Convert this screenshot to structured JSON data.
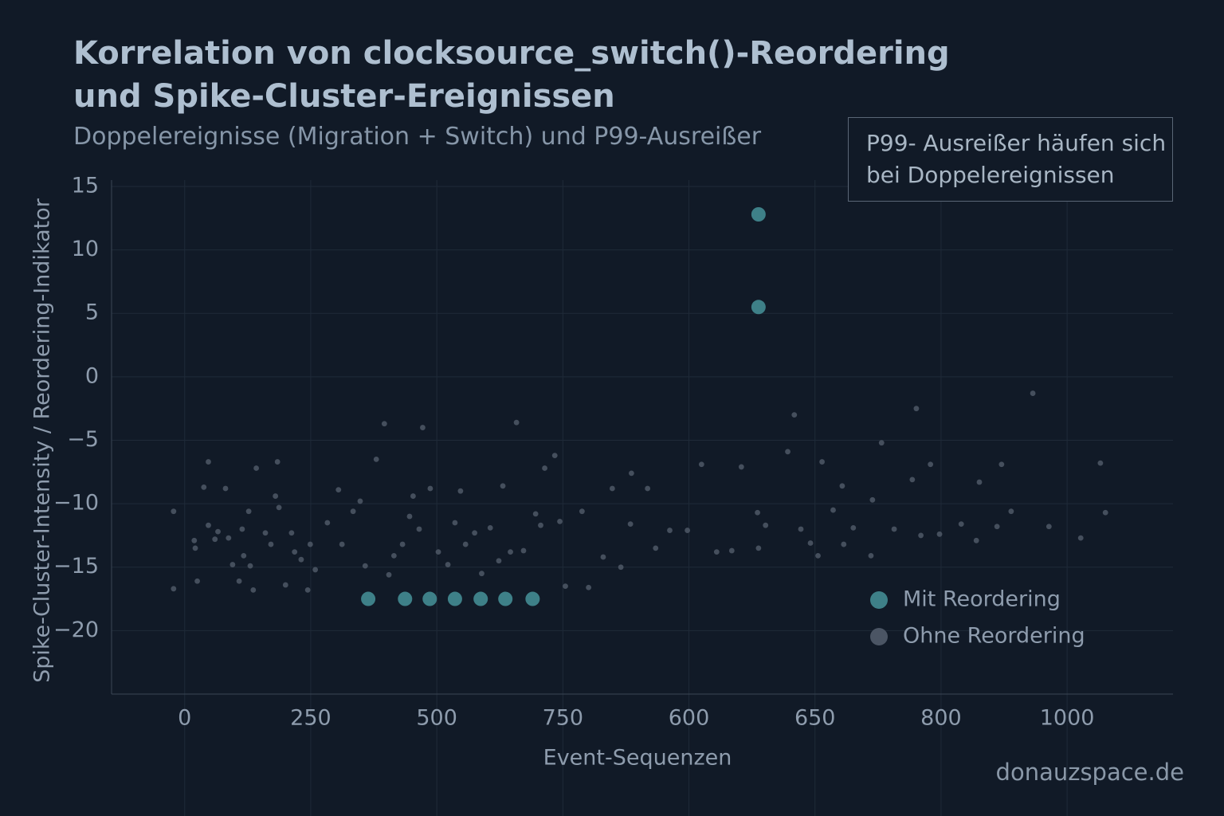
{
  "chart_data": {
    "type": "scatter",
    "title": "Korrelation von clocksource_switch()-Reordering und Spike-Cluster-Ereignissen",
    "subtitle": "Doppelereignisse (Migration + Switch) und P99-Ausreißer",
    "x_label": "Event-Sequenzen",
    "y_label": "Spike-Cluster-Intensity / Reordering-Indikator",
    "annotation": "P99- Ausreißer häufen sich bei Doppelereignissen",
    "watermark": "donauzspace.de",
    "xlim": [
      -145,
      1960
    ],
    "ylim": [
      -25,
      15.5
    ],
    "xticks": [
      0,
      250,
      500,
      750,
      {
        "value": 1000,
        "label": "600"
      },
      {
        "value": 1250,
        "label": "650"
      },
      {
        "value": 1500,
        "label": "800"
      },
      {
        "value": 1750,
        "label": "1000"
      }
    ],
    "yticks": [
      15,
      10,
      5,
      0,
      {
        "value": -5,
        "label": "−5"
      },
      {
        "value": -10,
        "label": "−10"
      },
      {
        "value": -15,
        "label": "−15"
      },
      {
        "value": -20,
        "label": "−20"
      }
    ],
    "grid": true,
    "legend": "lower right",
    "series": [
      {
        "name": "Mit Reordering",
        "color": "#3e8088",
        "x": [
          1138,
          1138,
          364,
          437,
          486,
          536,
          587,
          636,
          690
        ],
        "values": [
          12.8,
          5.5,
          -17.5,
          -17.5,
          -17.5,
          -17.5,
          -17.5,
          -17.5,
          -17.5
        ]
      },
      {
        "name": "Ohne Reordering",
        "color": "#4b5564",
        "x": [
          -22,
          -22,
          19,
          21,
          25,
          38,
          47,
          47,
          60,
          66,
          81,
          87,
          95,
          108,
          114,
          117,
          127,
          130,
          136,
          142,
          160,
          171,
          180,
          184,
          187,
          200,
          212,
          218,
          231,
          244,
          249,
          259,
          283,
          305,
          312,
          334,
          348,
          358,
          380,
          396,
          405,
          415,
          432,
          446,
          453,
          465,
          472,
          487,
          503,
          522,
          536,
          547,
          557,
          575,
          589,
          606,
          623,
          631,
          646,
          658,
          672,
          696,
          706,
          714,
          734,
          744,
          755,
          788,
          801,
          830,
          848,
          865,
          886,
          884,
          918,
          934,
          962,
          997,
          1025,
          1055,
          1085,
          1104,
          1136,
          1138,
          1152,
          1196,
          1209,
          1222,
          1241,
          1256,
          1264,
          1286,
          1304,
          1307,
          1326,
          1364,
          1361,
          1382,
          1407,
          1443,
          1451,
          1460,
          1479,
          1497,
          1540,
          1570,
          1576,
          1611,
          1620,
          1639,
          1682,
          1714,
          1777,
          1816,
          1826
        ],
        "values": [
          -10.6,
          -16.7,
          -12.9,
          -13.5,
          -16.1,
          -8.7,
          -6.7,
          -11.7,
          -12.8,
          -12.2,
          -8.8,
          -12.7,
          -14.8,
          -16.1,
          -12,
          -14.1,
          -10.6,
          -14.9,
          -16.8,
          -7.2,
          -12.3,
          -13.2,
          -9.4,
          -6.7,
          -10.3,
          -16.4,
          -12.3,
          -13.8,
          -14.4,
          -16.8,
          -13.2,
          -15.2,
          -11.5,
          -8.9,
          -13.2,
          -10.6,
          -9.8,
          -14.9,
          -6.5,
          -3.7,
          -15.6,
          -14.1,
          -13.2,
          -11,
          -9.4,
          -12,
          -4,
          -8.8,
          -13.8,
          -14.8,
          -11.5,
          -9,
          -13.2,
          -12.3,
          -15.5,
          -11.9,
          -14.5,
          -8.6,
          -13.8,
          -3.6,
          -13.7,
          -10.8,
          -11.7,
          -7.2,
          -6.2,
          -11.4,
          -16.5,
          -10.6,
          -16.6,
          -14.2,
          -8.8,
          -15,
          -7.6,
          -11.6,
          -8.8,
          -13.5,
          -12.1,
          -12.1,
          -6.9,
          -13.8,
          -13.7,
          -7.1,
          -10.7,
          -13.5,
          -11.7,
          -5.9,
          -3,
          -12,
          -13.1,
          -14.1,
          -6.7,
          -10.5,
          -8.6,
          -13.2,
          -11.9,
          -9.7,
          -14.1,
          -5.2,
          -12,
          -8.1,
          -2.5,
          -12.5,
          -6.9,
          -12.4,
          -11.6,
          -12.9,
          -8.3,
          -11.8,
          -6.9,
          -10.6,
          -1.3,
          -11.8,
          -12.7,
          -6.8,
          -10.7
        ]
      }
    ]
  }
}
